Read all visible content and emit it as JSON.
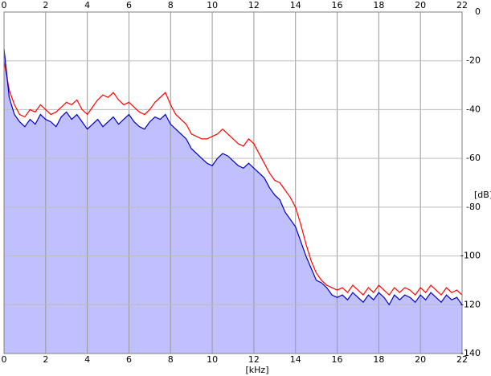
{
  "chart_data": {
    "type": "line",
    "x_label": "[kHz]",
    "y_label": "[dB]",
    "x": [
      0,
      0.25,
      0.5,
      0.75,
      1,
      1.25,
      1.5,
      1.75,
      2,
      2.25,
      2.5,
      2.75,
      3,
      3.25,
      3.5,
      3.75,
      4,
      4.25,
      4.5,
      4.75,
      5,
      5.25,
      5.5,
      5.75,
      6,
      6.25,
      6.5,
      6.75,
      7,
      7.25,
      7.5,
      7.75,
      8,
      8.25,
      8.5,
      8.75,
      9,
      9.25,
      9.5,
      9.75,
      10,
      10.25,
      10.5,
      10.75,
      11,
      11.25,
      11.5,
      11.75,
      12,
      12.25,
      12.5,
      12.75,
      13,
      13.25,
      13.5,
      13.75,
      14,
      14.25,
      14.5,
      14.75,
      15,
      15.25,
      15.5,
      15.75,
      16,
      16.25,
      16.5,
      16.75,
      17,
      17.25,
      17.5,
      17.75,
      18,
      18.25,
      18.5,
      18.75,
      19,
      19.25,
      19.5,
      19.75,
      20,
      20.25,
      20.5,
      20.75,
      21,
      21.25,
      21.5,
      21.75,
      22
    ],
    "series": [
      {
        "color": "#ff0000",
        "values": [
          -20,
          -32,
          -38,
          -42,
          -43,
          -40,
          -41,
          -38,
          -40,
          -42,
          -41,
          -39,
          -37,
          -38,
          -36,
          -40,
          -42,
          -39,
          -36,
          -34,
          -35,
          -33,
          -36,
          -38,
          -37,
          -39,
          -41,
          -42,
          -40,
          -37,
          -35,
          -33,
          -38,
          -42,
          -44,
          -46,
          -50,
          -51,
          -52,
          -52,
          -51,
          -50,
          -48,
          -50,
          -52,
          -54,
          -55,
          -52,
          -54,
          -58,
          -62,
          -66,
          -69,
          -70,
          -73,
          -76,
          -80,
          -87,
          -95,
          -102,
          -107,
          -110,
          -112,
          -113,
          -114,
          -113,
          -115,
          -112,
          -114,
          -116,
          -113,
          -115,
          -112,
          -114,
          -116,
          -113,
          -115,
          -113,
          -114,
          -116,
          -113,
          -115,
          -112,
          -114,
          -116,
          -113,
          -115,
          -114,
          -116
        ]
      },
      {
        "color": "#0000c0",
        "fill": "#c0c0ff",
        "values": [
          -15,
          -35,
          -42,
          -45,
          -47,
          -44,
          -46,
          -42,
          -44,
          -45,
          -47,
          -43,
          -41,
          -44,
          -42,
          -45,
          -48,
          -46,
          -44,
          -47,
          -45,
          -43,
          -46,
          -44,
          -42,
          -45,
          -47,
          -48,
          -45,
          -43,
          -44,
          -42,
          -46,
          -48,
          -50,
          -52,
          -56,
          -58,
          -60,
          -62,
          -63,
          -60,
          -58,
          -59,
          -61,
          -63,
          -64,
          -62,
          -64,
          -66,
          -68,
          -72,
          -75,
          -77,
          -82,
          -85,
          -88,
          -94,
          -100,
          -105,
          -110,
          -111,
          -113,
          -116,
          -117,
          -116,
          -118,
          -115,
          -117,
          -119,
          -116,
          -118,
          -115,
          -117,
          -120,
          -116,
          -118,
          -116,
          -117,
          -119,
          -116,
          -118,
          -115,
          -117,
          -119,
          -116,
          -118,
          -117,
          -120
        ]
      }
    ],
    "xlim": [
      0,
      22
    ],
    "xticks": [
      0,
      2,
      4,
      6,
      8,
      10,
      12,
      14,
      16,
      18,
      20,
      22
    ],
    "ylim": [
      -140,
      0
    ],
    "yticks": [
      0,
      -20,
      -40,
      -60,
      -80,
      -100,
      -120,
      -140
    ],
    "grid": true
  }
}
